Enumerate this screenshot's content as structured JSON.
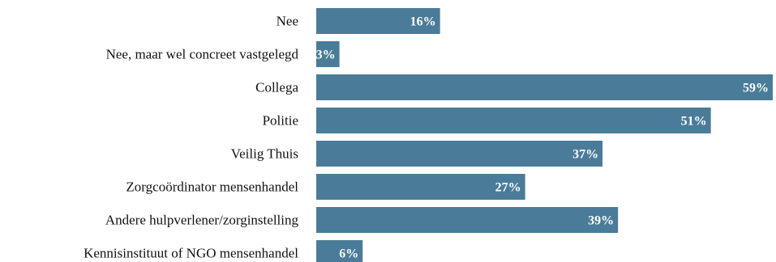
{
  "chart_data": {
    "type": "bar",
    "orientation": "horizontal",
    "categories": [
      "Nee",
      "Nee, maar wel concreet vastgelegd",
      "Collega",
      "Politie",
      "Veilig Thuis",
      "Zorgcoördinator mensenhandel",
      "Andere hulpverlener/zorginstelling",
      "Kennisinstituut of NGO mensenhandel"
    ],
    "values": [
      16,
      3,
      59,
      51,
      37,
      27,
      39,
      6
    ],
    "value_labels": [
      "16%",
      "3%",
      "59%",
      "51%",
      "37%",
      "27%",
      "39%",
      "6%"
    ],
    "title": "",
    "xlabel": "",
    "ylabel": "",
    "xlim": [
      0,
      59
    ],
    "grid": false,
    "legend": "none",
    "bar_color": "#4a7c99"
  }
}
